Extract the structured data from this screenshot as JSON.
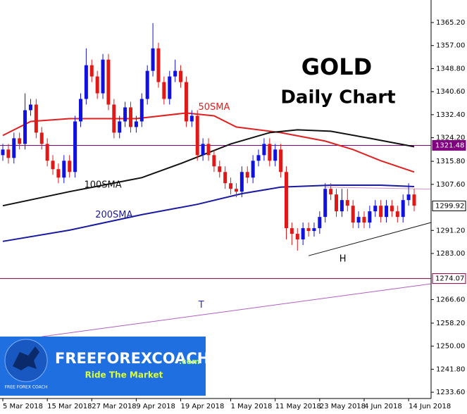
{
  "chart_data": {
    "type": "candlestick",
    "title": "GOLD",
    "subtitle": "Daily Chart",
    "categories": [
      "5 Mar 2018",
      null,
      null,
      null,
      null,
      null,
      null,
      null,
      "15 Mar 2018",
      null,
      null,
      null,
      null,
      null,
      null,
      null,
      "27 Mar 2018",
      null,
      null,
      null,
      null,
      null,
      null,
      null,
      "9 Apr 2018",
      null,
      null,
      null,
      null,
      null,
      null,
      null,
      "19 Apr 2018",
      null,
      null,
      null,
      null,
      null,
      null,
      null,
      null,
      "1 May 2018",
      null,
      null,
      null,
      null,
      null,
      null,
      null,
      "11 May 2018",
      null,
      null,
      null,
      null,
      null,
      null,
      null,
      "23 May 2018",
      null,
      null,
      null,
      null,
      null,
      null,
      null,
      "4 Jun 2018",
      null,
      null,
      null,
      null,
      null,
      null,
      null,
      "14 Jun 2018",
      null
    ],
    "open": [
      1318,
      1320,
      1317,
      1324,
      1322,
      1334,
      1336,
      1326,
      1322,
      1316,
      1313,
      1310,
      1316,
      1312,
      1330,
      1338,
      1350,
      1346,
      1340,
      1352,
      1336,
      1326,
      1330,
      1335,
      1328,
      1330,
      1338,
      1348,
      1356,
      1344,
      1338,
      1346,
      1348,
      1344,
      1330,
      1332,
      1318,
      1322,
      1318,
      1314,
      1312,
      1308,
      1306,
      1305,
      1312,
      1310,
      1316,
      1318,
      1322,
      1316,
      1320,
      1312,
      1292,
      1290,
      1288,
      1292,
      1291,
      1292,
      1296,
      1306,
      1304,
      1298,
      1302,
      1300,
      1294,
      1296,
      1294,
      1298,
      1300,
      1296,
      1300,
      1298,
      1296,
      1302,
      1304
    ],
    "high": [
      1322,
      1322,
      1326,
      1326,
      1340,
      1338,
      1338,
      1328,
      1324,
      1318,
      1315,
      1318,
      1318,
      1332,
      1340,
      1356,
      1352,
      1348,
      1354,
      1354,
      1338,
      1332,
      1337,
      1337,
      1332,
      1340,
      1350,
      1365,
      1358,
      1346,
      1348,
      1352,
      1350,
      1346,
      1334,
      1334,
      1324,
      1324,
      1320,
      1316,
      1314,
      1310,
      1308,
      1314,
      1314,
      1318,
      1320,
      1324,
      1324,
      1322,
      1322,
      1314,
      1294,
      1292,
      1294,
      1294,
      1294,
      1298,
      1308,
      1308,
      1306,
      1306,
      1306,
      1302,
      1298,
      1298,
      1300,
      1302,
      1302,
      1302,
      1302,
      1300,
      1304,
      1308,
      1306
    ],
    "low": [
      1316,
      1315,
      1315,
      1320,
      1320,
      1332,
      1324,
      1320,
      1314,
      1311,
      1308,
      1308,
      1310,
      1310,
      1328,
      1336,
      1344,
      1338,
      1338,
      1334,
      1324,
      1324,
      1328,
      1326,
      1326,
      1328,
      1336,
      1346,
      1342,
      1336,
      1336,
      1344,
      1342,
      1328,
      1328,
      1316,
      1316,
      1316,
      1312,
      1310,
      1306,
      1304,
      1303,
      1303,
      1308,
      1308,
      1314,
      1316,
      1314,
      1314,
      1310,
      1288,
      1286,
      1284,
      1286,
      1289,
      1289,
      1290,
      1294,
      1302,
      1296,
      1296,
      1298,
      1292,
      1292,
      1292,
      1292,
      1296,
      1294,
      1294,
      1296,
      1294,
      1294,
      1300,
      1298
    ],
    "close": [
      1320,
      1317,
      1324,
      1322,
      1334,
      1336,
      1326,
      1322,
      1316,
      1313,
      1310,
      1316,
      1312,
      1330,
      1338,
      1350,
      1346,
      1340,
      1352,
      1336,
      1326,
      1330,
      1335,
      1328,
      1330,
      1338,
      1348,
      1356,
      1344,
      1338,
      1346,
      1348,
      1344,
      1330,
      1332,
      1318,
      1322,
      1318,
      1314,
      1312,
      1308,
      1306,
      1305,
      1312,
      1310,
      1316,
      1318,
      1322,
      1316,
      1320,
      1312,
      1292,
      1290,
      1288,
      1292,
      1291,
      1292,
      1296,
      1306,
      1304,
      1298,
      1302,
      1300,
      1294,
      1296,
      1294,
      1298,
      1300,
      1296,
      1300,
      1298,
      1296,
      1302,
      1304,
      1300
    ],
    "up_color": "#1010e0",
    "down_color": "#e01818",
    "series": [
      {
        "name": "50SMA",
        "color": "#e02020",
        "x": [
          0,
          5,
          12,
          24,
          33,
          38,
          42,
          50,
          58,
          63,
          68,
          74
        ],
        "values": [
          1325,
          1330,
          1331,
          1331,
          1333,
          1332,
          1328,
          1326,
          1323,
          1320,
          1316,
          1312
        ]
      },
      {
        "name": "100SMA",
        "color": "#111111",
        "x": [
          0,
          12,
          25,
          32,
          41,
          48,
          53,
          59,
          66,
          74
        ],
        "values": [
          1300,
          1305,
          1310,
          1315,
          1322,
          1326,
          1327,
          1326.5,
          1324,
          1321
        ]
      },
      {
        "name": "200SMA",
        "color": "#1a1aa0",
        "x": [
          0,
          12,
          25,
          35,
          43,
          50,
          59,
          68,
          74
        ],
        "values": [
          1287.3,
          1291.3,
          1296.8,
          1300.5,
          1304.3,
          1306.6,
          1307.3,
          1307.3,
          1306.8
        ]
      }
    ],
    "trendlines": [
      {
        "label": "H",
        "color": "#111111",
        "x": [
          55,
          77
        ],
        "values": [
          1282.2,
          1294
        ]
      },
      {
        "label": "T",
        "color": "#b060c0",
        "x": [
          7,
          77
        ],
        "values": [
          1253.4,
          1272.2
        ]
      },
      {
        "color": "#d090d0",
        "x": [
          58,
          77
        ],
        "values": [
          1306.6,
          1305.9
        ]
      }
    ],
    "levels": [
      {
        "value": 1321.48,
        "color": "#800080",
        "line": true,
        "filled": true
      },
      {
        "value": 1299.92,
        "color": "#000000",
        "line": false,
        "filled": false
      },
      {
        "value": 1274.07,
        "color": "#800040",
        "line": true,
        "filled": false
      }
    ],
    "ylim": [
      1231.37,
      1373.22
    ],
    "yticks": [
      {
        "value": 1365.2,
        "label": "1365.20"
      },
      {
        "value": 1357,
        "label": "1357.00"
      },
      {
        "value": 1348.8,
        "label": "1348.80"
      },
      {
        "value": 1340.6,
        "label": "1340.60"
      },
      {
        "value": 1332.4,
        "label": "1332.40"
      },
      {
        "value": 1324.2,
        "label": "1324.20"
      },
      {
        "value": 1315.8,
        "label": "1315.80"
      },
      {
        "value": 1307.6,
        "label": "1307.60"
      },
      {
        "value": 1291.2,
        "label": "1291.20"
      },
      {
        "value": 1283,
        "label": "1283.00"
      },
      {
        "value": 1266.6,
        "label": "1266.60"
      },
      {
        "value": 1258.2,
        "label": "1258.20"
      },
      {
        "value": 1250,
        "label": "1250.00"
      },
      {
        "value": 1241.8,
        "label": "1241.80"
      },
      {
        "value": 1233.6,
        "label": "1233.60"
      }
    ]
  },
  "logo": {
    "name": "FREEFOREXCOACH",
    "suffix": ".com",
    "tagline": "Ride The Market",
    "badge": "FREE FOREX COACH"
  }
}
